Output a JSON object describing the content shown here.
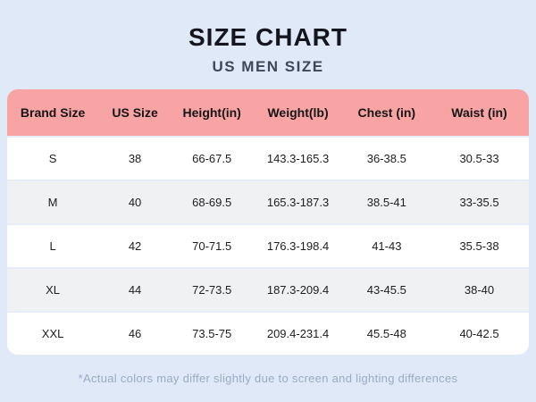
{
  "page": {
    "title": "SIZE CHART",
    "subtitle": "US MEN SIZE",
    "footnote": "*Actual colors may differ slightly due to screen and lighting differences"
  },
  "colors": {
    "background": "#dfe9f7",
    "header_pink": "#f9a4a4",
    "row_white": "#ffffff",
    "row_alt_gray": "#f0f1f3",
    "row_separator": "#e6edf8",
    "title_text": "#15151f",
    "subtitle_text": "#3e4759",
    "footnote_text": "#9aaac7"
  },
  "table": {
    "headers": [
      "Brand Size",
      "US Size",
      "Height(in)",
      "Weight(lb)",
      "Chest (in)",
      "Waist (in)"
    ],
    "rows": [
      {
        "cells": [
          "S",
          "38",
          "66-67.5",
          "143.3-165.3",
          "36-38.5",
          "30.5-33"
        ]
      },
      {
        "cells": [
          "M",
          "40",
          "68-69.5",
          "165.3-187.3",
          "38.5-41",
          "33-35.5"
        ]
      },
      {
        "cells": [
          "L",
          "42",
          "70-71.5",
          "176.3-198.4",
          "41-43",
          "35.5-38"
        ]
      },
      {
        "cells": [
          "XL",
          "44",
          "72-73.5",
          "187.3-209.4",
          "43-45.5",
          "38-40"
        ]
      },
      {
        "cells": [
          "XXL",
          "46",
          "73.5-75",
          "209.4-231.4",
          "45.5-48",
          "40-42.5"
        ]
      }
    ]
  },
  "chart_data": {
    "type": "table",
    "title": "SIZE CHART",
    "subtitle": "US MEN SIZE",
    "columns": [
      "Brand Size",
      "US Size",
      "Height(in)",
      "Weight(lb)",
      "Chest (in)",
      "Waist (in)"
    ],
    "rows": [
      [
        "S",
        "38",
        "66-67.5",
        "143.3-165.3",
        "36-38.5",
        "30.5-33"
      ],
      [
        "M",
        "40",
        "68-69.5",
        "165.3-187.3",
        "38.5-41",
        "33-35.5"
      ],
      [
        "L",
        "42",
        "70-71.5",
        "176.3-198.4",
        "41-43",
        "35.5-38"
      ],
      [
        "XL",
        "44",
        "72-73.5",
        "187.3-209.4",
        "43-45.5",
        "38-40"
      ],
      [
        "XXL",
        "46",
        "73.5-75",
        "209.4-231.4",
        "45.5-48",
        "40-42.5"
      ]
    ],
    "footnote": "*Actual colors may differ slightly due to screen and lighting differences"
  }
}
